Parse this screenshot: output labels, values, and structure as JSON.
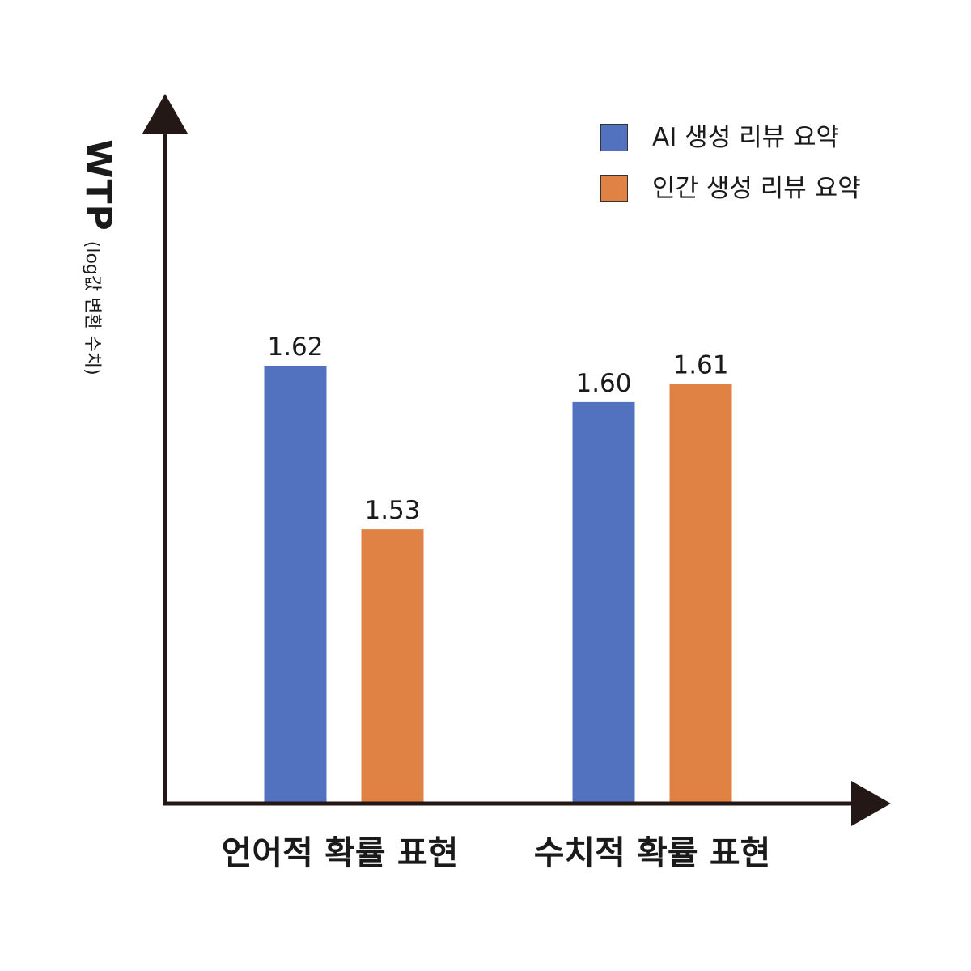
{
  "chart_data": {
    "type": "bar",
    "title": "",
    "xlabel": "",
    "ylabel": "WTP",
    "ylabel_sub": "(log값 변환 수치)",
    "categories": [
      "언어적 확률 표현",
      "수치적 확률 표현"
    ],
    "series": [
      {
        "name": "AI 생성 리뷰 요약",
        "values": [
          1.62,
          1.6
        ],
        "color": "#5272bf"
      },
      {
        "name": "인간 생성 리뷰 요약",
        "values": [
          1.53,
          1.61
        ],
        "color": "#df8244"
      }
    ],
    "ylim": [
      1.38,
      1.75
    ],
    "grid": false,
    "legend": "top-right",
    "value_labels": [
      [
        "1.62",
        "1.60"
      ],
      [
        "1.53",
        "1.61"
      ]
    ],
    "axis_color": "#231815"
  }
}
